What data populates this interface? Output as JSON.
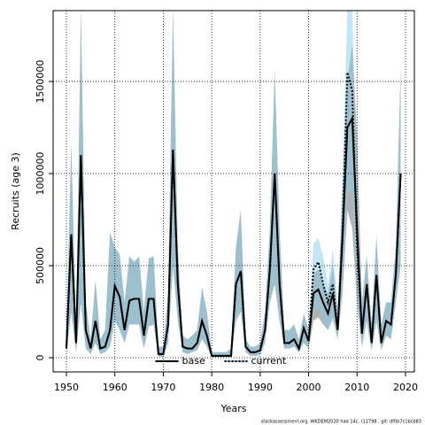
{
  "chart_data": {
    "type": "band-line",
    "xlabel": "Years",
    "ylabel": "Recruits (age 3)",
    "footnote": "stockassessment.org, WKDEM2020 had 14c, r11798 , git: df0b7c1bcb83",
    "x": [
      1950,
      1951,
      1952,
      1953,
      1954,
      1955,
      1956,
      1957,
      1958,
      1959,
      1960,
      1961,
      1962,
      1963,
      1964,
      1965,
      1966,
      1967,
      1968,
      1969,
      1970,
      1971,
      1972,
      1973,
      1974,
      1975,
      1976,
      1977,
      1978,
      1979,
      1980,
      1981,
      1982,
      1983,
      1984,
      1985,
      1986,
      1987,
      1988,
      1989,
      1990,
      1991,
      1992,
      1993,
      1994,
      1995,
      1996,
      1997,
      1998,
      1999,
      2000,
      2001,
      2002,
      2003,
      2004,
      2005,
      2006,
      2007,
      2008,
      2009,
      2010,
      2011,
      2012,
      2013,
      2014,
      2015,
      2016,
      2017,
      2018,
      2019
    ],
    "xlim": [
      1947.26,
      2021.83
    ],
    "xticks": [
      1950,
      1960,
      1970,
      1980,
      1990,
      2000,
      2010,
      2020
    ],
    "ylim": [
      -77000,
      1885000
    ],
    "yticks": [
      0,
      500000,
      1000000,
      1500000
    ],
    "grid": true,
    "legend": "bottom",
    "series": [
      {
        "name": "base",
        "color": "#000000",
        "band_color": "#808080",
        "linestyle": "solid",
        "values": [
          50000,
          670000,
          80000,
          1100000,
          150000,
          50000,
          200000,
          50000,
          60000,
          150000,
          390000,
          330000,
          150000,
          310000,
          320000,
          320000,
          120000,
          320000,
          320000,
          20000,
          20000,
          180000,
          1130000,
          400000,
          60000,
          50000,
          50000,
          80000,
          200000,
          120000,
          10000,
          10000,
          10000,
          10000,
          10000,
          400000,
          470000,
          60000,
          30000,
          30000,
          40000,
          150000,
          480000,
          1000000,
          400000,
          80000,
          80000,
          100000,
          50000,
          160000,
          90000,
          350000,
          370000,
          300000,
          240000,
          350000,
          150000,
          650000,
          1250000,
          1300000,
          700000,
          130000,
          400000,
          80000,
          450000,
          80000,
          200000,
          180000,
          450000,
          1000000
        ],
        "lower": [
          20000,
          250000,
          30000,
          300000,
          50000,
          20000,
          80000,
          20000,
          30000,
          60000,
          200000,
          150000,
          80000,
          180000,
          180000,
          180000,
          50000,
          170000,
          180000,
          5000,
          5000,
          80000,
          500000,
          200000,
          30000,
          20000,
          30000,
          40000,
          100000,
          60000,
          3000,
          3000,
          3000,
          3000,
          3000,
          200000,
          250000,
          30000,
          10000,
          10000,
          15000,
          80000,
          300000,
          400000,
          200000,
          50000,
          50000,
          60000,
          30000,
          80000,
          50000,
          200000,
          220000,
          180000,
          150000,
          220000,
          100000,
          350000,
          800000,
          700000,
          300000,
          60000,
          200000,
          40000,
          200000,
          40000,
          120000,
          100000,
          300000,
          500000
        ],
        "upper": [
          120000,
          1160000,
          150000,
          1890000,
          300000,
          100000,
          420000,
          100000,
          150000,
          680000,
          600000,
          560000,
          300000,
          550000,
          520000,
          550000,
          250000,
          540000,
          550000,
          60000,
          60000,
          350000,
          1890000,
          600000,
          120000,
          100000,
          120000,
          150000,
          380000,
          250000,
          30000,
          30000,
          30000,
          30000,
          50000,
          600000,
          800000,
          100000,
          60000,
          60000,
          80000,
          250000,
          700000,
          1560000,
          700000,
          150000,
          150000,
          180000,
          100000,
          240000,
          150000,
          450000,
          480000,
          400000,
          350000,
          500000,
          250000,
          900000,
          1500000,
          1700000,
          1200000,
          300000,
          550000,
          180000,
          660000,
          180000,
          300000,
          300000,
          600000,
          1570000
        ]
      },
      {
        "name": "current",
        "color": "#000000",
        "band_color": "#87ceeb",
        "linestyle": "dotted",
        "values": [
          50000,
          670000,
          80000,
          1100000,
          150000,
          50000,
          200000,
          50000,
          60000,
          150000,
          390000,
          330000,
          150000,
          310000,
          320000,
          320000,
          120000,
          320000,
          320000,
          20000,
          20000,
          180000,
          1130000,
          400000,
          60000,
          50000,
          50000,
          80000,
          200000,
          120000,
          10000,
          10000,
          10000,
          10000,
          10000,
          400000,
          470000,
          60000,
          30000,
          30000,
          40000,
          150000,
          480000,
          1000000,
          400000,
          80000,
          80000,
          100000,
          50000,
          160000,
          90000,
          480000,
          520000,
          400000,
          300000,
          400000,
          150000,
          700000,
          1550000,
          1450000,
          600000,
          130000,
          400000,
          80000,
          450000,
          80000,
          200000,
          180000,
          450000,
          1000000
        ],
        "lower": [
          20000,
          250000,
          30000,
          300000,
          50000,
          20000,
          80000,
          20000,
          30000,
          60000,
          200000,
          150000,
          80000,
          180000,
          180000,
          180000,
          50000,
          170000,
          180000,
          5000,
          5000,
          80000,
          500000,
          200000,
          30000,
          20000,
          30000,
          40000,
          100000,
          60000,
          3000,
          3000,
          3000,
          3000,
          3000,
          200000,
          250000,
          30000,
          10000,
          10000,
          15000,
          80000,
          300000,
          400000,
          200000,
          50000,
          50000,
          60000,
          30000,
          80000,
          50000,
          260000,
          270000,
          200000,
          150000,
          200000,
          100000,
          400000,
          900000,
          900000,
          300000,
          60000,
          200000,
          40000,
          200000,
          40000,
          120000,
          100000,
          300000,
          500000
        ],
        "upper": [
          120000,
          1160000,
          150000,
          1890000,
          300000,
          100000,
          420000,
          100000,
          150000,
          680000,
          600000,
          560000,
          300000,
          550000,
          520000,
          550000,
          250000,
          540000,
          550000,
          60000,
          60000,
          350000,
          1890000,
          600000,
          120000,
          100000,
          120000,
          150000,
          380000,
          250000,
          30000,
          30000,
          30000,
          30000,
          50000,
          600000,
          800000,
          100000,
          60000,
          60000,
          80000,
          250000,
          700000,
          1560000,
          700000,
          150000,
          150000,
          180000,
          100000,
          240000,
          150000,
          620000,
          650000,
          550000,
          400000,
          590000,
          280000,
          1000000,
          1890000,
          1890000,
          900000,
          300000,
          550000,
          180000,
          660000,
          180000,
          300000,
          300000,
          600000,
          1570000
        ]
      }
    ]
  }
}
